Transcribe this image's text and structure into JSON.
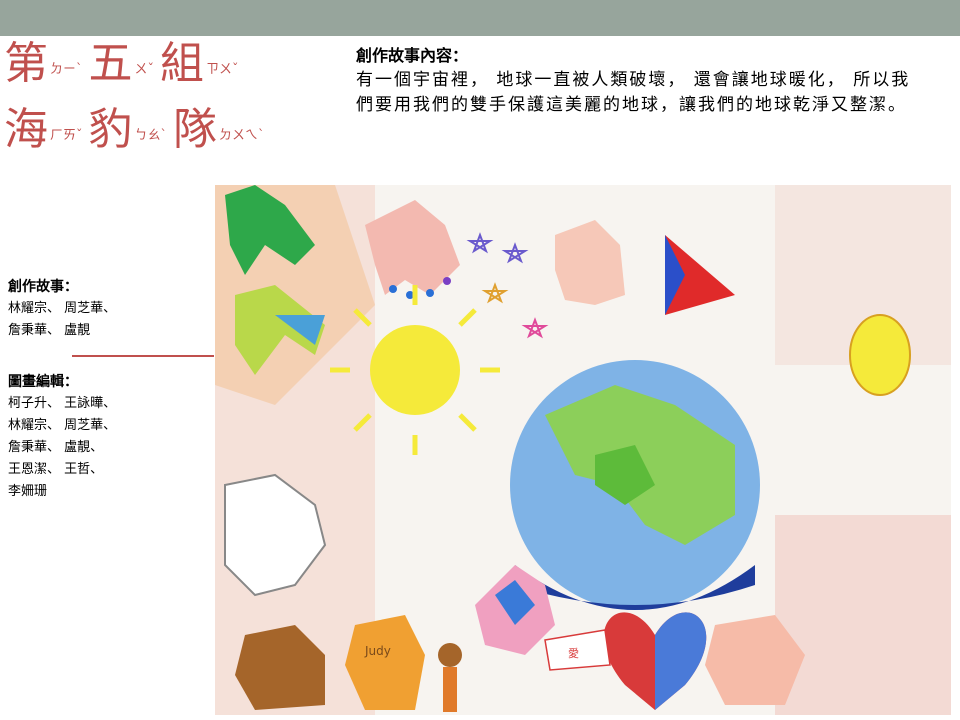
{
  "slide": {
    "title_line1": "第五組",
    "title_line1_zhuyin": [
      "ㄉㄧˋ",
      "ㄨˇ",
      "ㄗㄨˇ"
    ],
    "title_line2": "海豹隊",
    "title_line2_zhuyin": [
      "ㄏㄞˇ",
      "ㄅㄠˋ",
      "ㄉㄨㄟˋ"
    ],
    "accent_color": "#c0504d",
    "topbar_color": "#97a59c"
  },
  "story": {
    "heading": "創作故事內容：",
    "body": "有一個宇宙裡， 地球一直被人類破壞， 還會讓地球暖化， 所以我們要用我們的雙手保護這美麗的地球，讓我們的地球乾淨又整潔。"
  },
  "credits": {
    "story_heading": "創作故事：",
    "story_names": "林耀宗、 周芝華、\n詹秉華、 盧靚",
    "art_heading": "圖畫編輯：",
    "art_names": "柯子升、 王詠曄、\n林耀宗、 周芝華、\n詹秉華、 盧靚、\n王恩潔、 王哲、\n李姍珊"
  },
  "drawing": {
    "labels": {
      "signature": "Judy",
      "heart_label": "愛"
    },
    "icons": [
      "hand-prints",
      "earth",
      "sun",
      "heart",
      "stars",
      "triangle-flag",
      "child-figure"
    ]
  }
}
